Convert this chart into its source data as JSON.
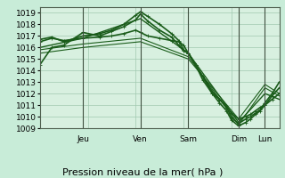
{
  "bg_color": "#c8ecd8",
  "plot_bg_color": "#d8f0e0",
  "grid_color": "#a0c8b0",
  "line_color": "#1a5c1a",
  "ylim": [
    1009,
    1019.5
  ],
  "yticks": [
    1009,
    1010,
    1011,
    1012,
    1013,
    1014,
    1015,
    1016,
    1017,
    1018,
    1019
  ],
  "xlabel": "Pression niveau de la mer( hPa )",
  "xlabel_fontsize": 8,
  "tick_fontsize": 6.5,
  "day_labels": [
    "Jeu",
    "Ven",
    "Sam",
    "Dim",
    "Lun"
  ],
  "day_positions": [
    0.18,
    0.42,
    0.62,
    0.83,
    0.94
  ],
  "series": [
    {
      "x": [
        0.0,
        0.05,
        0.1,
        0.18,
        0.25,
        0.3,
        0.35,
        0.4,
        0.42,
        0.45,
        0.5,
        0.55,
        0.58,
        0.6,
        0.62,
        0.65,
        0.68,
        0.72,
        0.75,
        0.78,
        0.8,
        0.83,
        0.86,
        0.88,
        0.9,
        0.92,
        0.94,
        0.97,
        1.0
      ],
      "y": [
        1016.7,
        1016.9,
        1016.5,
        1017.0,
        1017.2,
        1017.5,
        1018.0,
        1018.8,
        1019.1,
        1018.7,
        1018.0,
        1017.2,
        1016.6,
        1015.8,
        1015.5,
        1014.5,
        1013.5,
        1012.0,
        1011.2,
        1010.5,
        1009.7,
        1009.2,
        1009.5,
        1009.8,
        1010.2,
        1010.5,
        1011.0,
        1011.8,
        1012.5
      ],
      "lw": 1.2,
      "marker": "+"
    },
    {
      "x": [
        0.0,
        0.18,
        0.42,
        0.62,
        0.83,
        0.94,
        1.0
      ],
      "y": [
        1016.0,
        1016.8,
        1018.5,
        1015.5,
        1009.5,
        1012.0,
        1011.5
      ],
      "lw": 1.0,
      "marker": null
    },
    {
      "x": [
        0.0,
        0.18,
        0.42,
        0.62,
        0.83,
        0.94,
        1.0
      ],
      "y": [
        1015.8,
        1016.3,
        1016.8,
        1015.2,
        1009.3,
        1012.5,
        1011.8
      ],
      "lw": 0.8,
      "marker": null
    },
    {
      "x": [
        0.0,
        0.18,
        0.42,
        0.62,
        0.83,
        0.94,
        1.0
      ],
      "y": [
        1015.5,
        1016.0,
        1016.5,
        1015.0,
        1009.8,
        1012.8,
        1012.0
      ],
      "lw": 0.8,
      "marker": null
    },
    {
      "x": [
        0.0,
        0.05,
        0.1,
        0.18,
        0.25,
        0.3,
        0.35,
        0.4,
        0.42,
        0.45,
        0.5,
        0.55,
        0.58,
        0.6,
        0.62,
        0.65,
        0.68,
        0.72,
        0.75,
        0.78,
        0.8,
        0.83,
        0.86,
        0.88,
        0.9,
        0.92,
        0.94,
        0.97,
        1.0
      ],
      "y": [
        1014.5,
        1016.0,
        1016.2,
        1017.3,
        1017.0,
        1017.4,
        1017.8,
        1018.4,
        1018.9,
        1018.3,
        1017.5,
        1016.9,
        1016.2,
        1015.7,
        1015.5,
        1014.5,
        1013.5,
        1012.2,
        1011.5,
        1010.8,
        1009.9,
        1009.4,
        1009.8,
        1010.0,
        1010.3,
        1010.6,
        1011.2,
        1012.0,
        1013.0
      ],
      "lw": 1.2,
      "marker": "+"
    },
    {
      "x": [
        0.0,
        0.05,
        0.1,
        0.18,
        0.25,
        0.3,
        0.35,
        0.4,
        0.42,
        0.45,
        0.5,
        0.55,
        0.58,
        0.6,
        0.62,
        0.65,
        0.68,
        0.72,
        0.75,
        0.78,
        0.8,
        0.83,
        0.86,
        0.88,
        0.9,
        0.92,
        0.94,
        0.97,
        1.0
      ],
      "y": [
        1016.5,
        1016.8,
        1016.6,
        1016.8,
        1016.9,
        1017.0,
        1017.2,
        1017.5,
        1017.3,
        1017.0,
        1016.8,
        1016.6,
        1016.5,
        1016.2,
        1015.5,
        1014.5,
        1013.2,
        1012.0,
        1011.5,
        1010.9,
        1010.3,
        1009.8,
        1010.0,
        1010.2,
        1010.5,
        1010.8,
        1011.0,
        1011.5,
        1012.0
      ],
      "lw": 1.2,
      "marker": "+"
    }
  ]
}
